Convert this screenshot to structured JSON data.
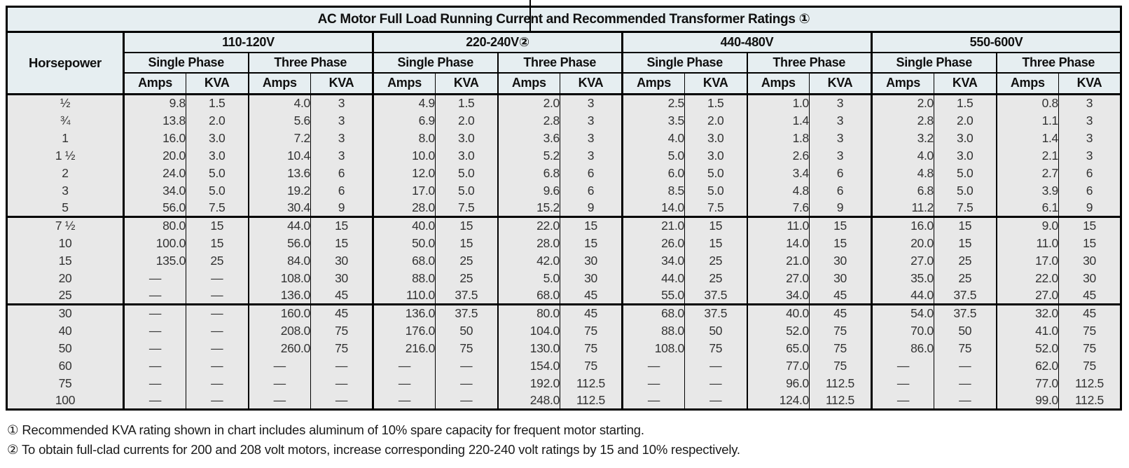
{
  "table": {
    "title": "AC Motor Full Load Running Current and Recommended Transformer Ratings ①",
    "header": {
      "hp_label": "Horsepower",
      "voltage_groups": [
        "110-120V",
        "220-240V②",
        "440-480V",
        "550-600V"
      ],
      "phases": [
        "Single Phase",
        "Three Phase"
      ],
      "units": [
        "Amps",
        "KVA"
      ]
    },
    "groups": [
      {
        "rows": [
          {
            "hp": "½",
            "values": [
              "9.8",
              "1.5",
              "4.0",
              "3",
              "4.9",
              "1.5",
              "2.0",
              "3",
              "2.5",
              "1.5",
              "1.0",
              "3",
              "2.0",
              "1.5",
              "0.8",
              "3"
            ]
          },
          {
            "hp": "¾",
            "values": [
              "13.8",
              "2.0",
              "5.6",
              "3",
              "6.9",
              "2.0",
              "2.8",
              "3",
              "3.5",
              "2.0",
              "1.4",
              "3",
              "2.8",
              "2.0",
              "1.1",
              "3"
            ]
          },
          {
            "hp": "1",
            "values": [
              "16.0",
              "3.0",
              "7.2",
              "3",
              "8.0",
              "3.0",
              "3.6",
              "3",
              "4.0",
              "3.0",
              "1.8",
              "3",
              "3.2",
              "3.0",
              "1.4",
              "3"
            ]
          },
          {
            "hp": "1 ½",
            "values": [
              "20.0",
              "3.0",
              "10.4",
              "3",
              "10.0",
              "3.0",
              "5.2",
              "3",
              "5.0",
              "3.0",
              "2.6",
              "3",
              "4.0",
              "3.0",
              "2.1",
              "3"
            ]
          },
          {
            "hp": "2",
            "values": [
              "24.0",
              "5.0",
              "13.6",
              "6",
              "12.0",
              "5.0",
              "6.8",
              "6",
              "6.0",
              "5.0",
              "3.4",
              "6",
              "4.8",
              "5.0",
              "2.7",
              "6"
            ]
          },
          {
            "hp": "3",
            "values": [
              "34.0",
              "5.0",
              "19.2",
              "6",
              "17.0",
              "5.0",
              "9.6",
              "6",
              "8.5",
              "5.0",
              "4.8",
              "6",
              "6.8",
              "5.0",
              "3.9",
              "6"
            ]
          },
          {
            "hp": "5",
            "values": [
              "56.0",
              "7.5",
              "30.4",
              "9",
              "28.0",
              "7.5",
              "15.2",
              "9",
              "14.0",
              "7.5",
              "7.6",
              "9",
              "11.2",
              "7.5",
              "6.1",
              "9"
            ]
          }
        ]
      },
      {
        "rows": [
          {
            "hp": "7 ½",
            "values": [
              "80.0",
              "15",
              "44.0",
              "15",
              "40.0",
              "15",
              "22.0",
              "15",
              "21.0",
              "15",
              "11.0",
              "15",
              "16.0",
              "15",
              "9.0",
              "15"
            ]
          },
          {
            "hp": "10",
            "values": [
              "100.0",
              "15",
              "56.0",
              "15",
              "50.0",
              "15",
              "28.0",
              "15",
              "26.0",
              "15",
              "14.0",
              "15",
              "20.0",
              "15",
              "11.0",
              "15"
            ]
          },
          {
            "hp": "15",
            "values": [
              "135.0",
              "25",
              "84.0",
              "30",
              "68.0",
              "25",
              "42.0",
              "30",
              "34.0",
              "25",
              "21.0",
              "30",
              "27.0",
              "25",
              "17.0",
              "30"
            ]
          },
          {
            "hp": "20",
            "values": [
              "—",
              "—",
              "108.0",
              "30",
              "88.0",
              "25",
              "5.0",
              "30",
              "44.0",
              "25",
              "27.0",
              "30",
              "35.0",
              "25",
              "22.0",
              "30"
            ]
          },
          {
            "hp": "25",
            "values": [
              "—",
              "—",
              "136.0",
              "45",
              "110.0",
              "37.5",
              "68.0",
              "45",
              "55.0",
              "37.5",
              "34.0",
              "45",
              "44.0",
              "37.5",
              "27.0",
              "45"
            ]
          }
        ]
      },
      {
        "rows": [
          {
            "hp": "30",
            "values": [
              "—",
              "—",
              "160.0",
              "45",
              "136.0",
              "37.5",
              "80.0",
              "45",
              "68.0",
              "37.5",
              "40.0",
              "45",
              "54.0",
              "37.5",
              "32.0",
              "45"
            ]
          },
          {
            "hp": "40",
            "values": [
              "—",
              "—",
              "208.0",
              "75",
              "176.0",
              "50",
              "104.0",
              "75",
              "88.0",
              "50",
              "52.0",
              "75",
              "70.0",
              "50",
              "41.0",
              "75"
            ]
          },
          {
            "hp": "50",
            "values": [
              "—",
              "—",
              "260.0",
              "75",
              "216.0",
              "75",
              "130.0",
              "75",
              "108.0",
              "75",
              "65.0",
              "75",
              "86.0",
              "75",
              "52.0",
              "75"
            ]
          },
          {
            "hp": "60",
            "values": [
              "—",
              "—",
              "—",
              "—",
              "—",
              "—",
              "154.0",
              "75",
              "—",
              "—",
              "77.0",
              "75",
              "—",
              "—",
              "62.0",
              "75"
            ]
          },
          {
            "hp": "75",
            "values": [
              "—",
              "—",
              "—",
              "—",
              "—",
              "—",
              "192.0",
              "112.5",
              "—",
              "—",
              "96.0",
              "112.5",
              "—",
              "—",
              "77.0",
              "112.5"
            ]
          },
          {
            "hp": "100",
            "values": [
              "—",
              "—",
              "—",
              "—",
              "—",
              "—",
              "248.0",
              "112.5",
              "—",
              "—",
              "124.0",
              "112.5",
              "—",
              "—",
              "99.0",
              "112.5"
            ]
          }
        ]
      }
    ],
    "footnotes": [
      "① Recommended KVA rating shown in chart includes aluminum of 10% spare capacity for frequent motor starting.",
      "② To obtain full-clad currents for 200 and 208 volt motors, increase corresponding 220-240 volt ratings by 15 and 10% respectively."
    ]
  },
  "colors": {
    "header_bg": "#e6eef1",
    "body_bg": "#e8e8e8",
    "border": "#000000",
    "page_bg": "#ffffff"
  }
}
